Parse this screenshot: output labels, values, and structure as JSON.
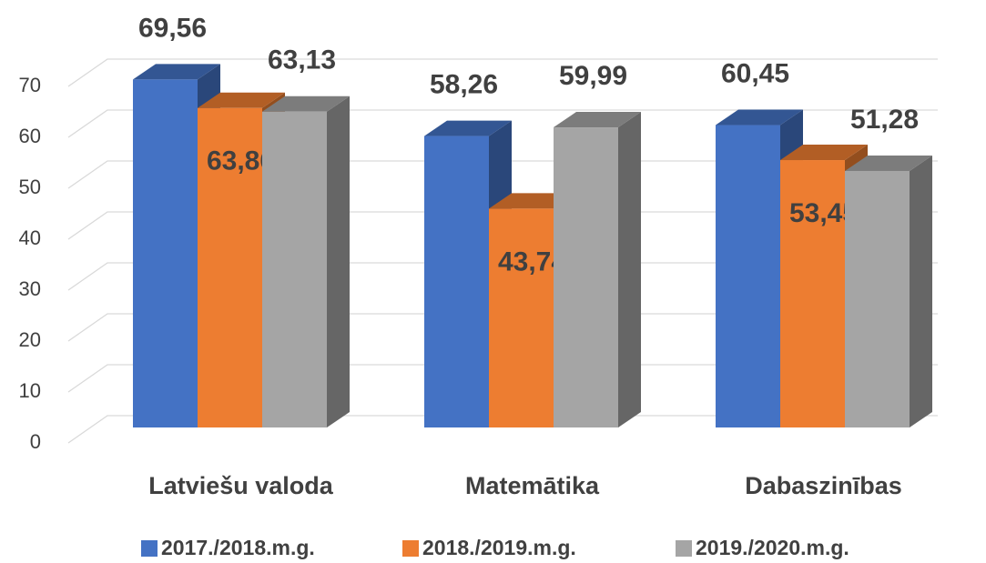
{
  "chart_data": {
    "type": "bar3d",
    "categories": [
      "Latviešu valoda",
      "Matemātika",
      "Dabaszinības"
    ],
    "series": [
      {
        "name": "2017./2018.m.g.",
        "color": "#4472c4",
        "values": [
          69.56,
          58.26,
          60.45
        ],
        "value_labels": [
          "69,56",
          "58,26",
          "60,45"
        ]
      },
      {
        "name": "2018./2019.m.g.",
        "color": "#ed7d31",
        "values": [
          63.86,
          43.74,
          53.45
        ],
        "value_labels": [
          "63,86",
          "43,74",
          "53,45"
        ]
      },
      {
        "name": "2019./2020.m.g.",
        "color": "#a5a5a5",
        "values": [
          63.13,
          59.99,
          51.28
        ],
        "value_labels": [
          "63,13",
          "59,99",
          "51,28"
        ]
      }
    ],
    "ylim": [
      0,
      70
    ],
    "yticks": [
      0,
      10,
      20,
      30,
      40,
      50,
      60,
      70
    ],
    "grid": true,
    "legend": "bottom"
  }
}
